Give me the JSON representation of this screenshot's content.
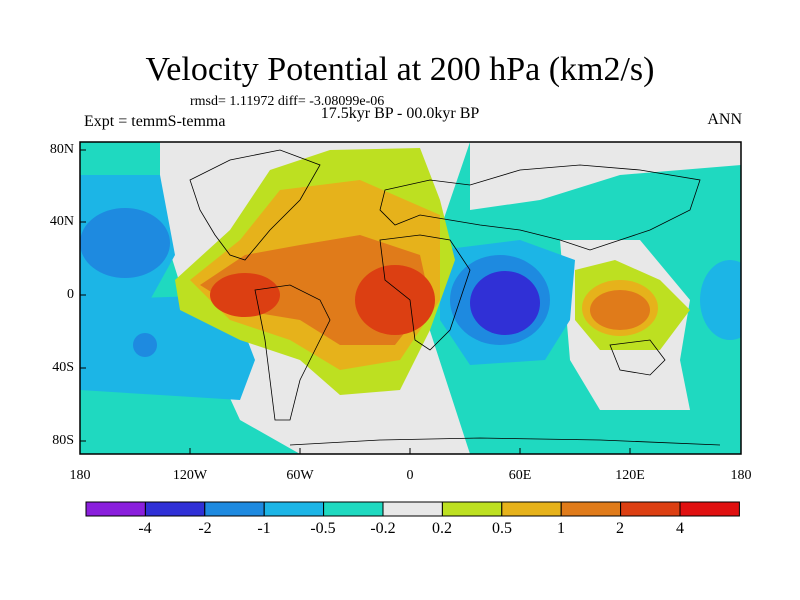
{
  "title": "Velocity Potential at 200 hPa (km2/s)",
  "stats": "rmsd= 1.11972 diff= -3.08099e-06",
  "period": "17.5kyr BP - 00.0kyr BP",
  "experiment": "Expt = temmS-temma",
  "season": "ANN",
  "lat_labels": [
    "80N",
    "40N",
    "0",
    "40S",
    "80S"
  ],
  "lon_labels": [
    "180",
    "120W",
    "60W",
    "0",
    "60E",
    "120E",
    "180"
  ],
  "colorbar": {
    "labels": [
      "-4",
      "-2",
      "-1",
      "-0.5",
      "-0.2",
      "0.2",
      "0.5",
      "1",
      "2",
      "4"
    ],
    "colors": [
      "#8a1fdc",
      "#3030d6",
      "#1e8ae0",
      "#1cb5e6",
      "#1fd9c0",
      "#e8e8e8",
      "#bde021",
      "#e6b21b",
      "#e07b1a",
      "#dc3f12",
      "#e01010"
    ]
  },
  "colors": {
    "land_outline": "#000000",
    "background": "#ffffff"
  }
}
